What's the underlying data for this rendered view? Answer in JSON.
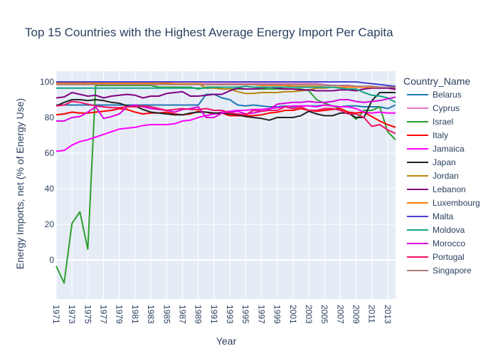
{
  "chart_data": {
    "type": "line",
    "title": "Top 15 Countries with the Highest Average Energy Import Per Capita",
    "xlabel": "Year",
    "ylabel": "Energy Imports, net (% of Energy Use)",
    "x": [
      1971,
      1972,
      1973,
      1974,
      1975,
      1976,
      1977,
      1978,
      1979,
      1980,
      1981,
      1982,
      1983,
      1984,
      1985,
      1986,
      1987,
      1988,
      1989,
      1990,
      1991,
      1992,
      1993,
      1994,
      1995,
      1996,
      1997,
      1998,
      1999,
      2000,
      2001,
      2002,
      2003,
      2004,
      2005,
      2006,
      2007,
      2008,
      2009,
      2010,
      2011,
      2012,
      2013,
      2014
    ],
    "xlim": [
      1971,
      2014
    ],
    "ylim": [
      -22,
      106
    ],
    "xticks": [
      1971,
      1973,
      1975,
      1977,
      1979,
      1981,
      1983,
      1985,
      1987,
      1989,
      1991,
      1993,
      1995,
      1997,
      1999,
      2001,
      2003,
      2005,
      2007,
      2009,
      2011,
      2013
    ],
    "yticks": [
      0,
      20,
      40,
      60,
      80,
      100
    ],
    "legend_title": "Country_Name",
    "legend_position": "right",
    "grid": true,
    "plot_bg": "#e5ecf6",
    "series": [
      {
        "name": "Belarus",
        "color": "#1f77b4",
        "values": [
          87,
          87,
          87,
          87,
          87,
          87,
          87,
          87,
          87,
          87,
          87,
          87,
          87,
          87,
          87,
          87,
          87,
          87,
          87,
          93,
          93,
          91,
          90,
          87,
          86.5,
          87,
          86.5,
          86,
          86,
          86.5,
          86,
          86.5,
          86.5,
          86.5,
          87,
          86.5,
          86,
          86.5,
          86.5,
          86,
          86,
          86,
          85,
          87
        ]
      },
      {
        "name": "Cyprus",
        "color": "#e377c2",
        "values": [
          99,
          99,
          99,
          99,
          99,
          99,
          99,
          99,
          99,
          99,
          99,
          99,
          99,
          99,
          99,
          99,
          99,
          99,
          99,
          99,
          99,
          99,
          99,
          99,
          99,
          99,
          99,
          99,
          99,
          99,
          99,
          99,
          99,
          99,
          98.5,
          98,
          98,
          97.5,
          97,
          97,
          97,
          96.5,
          96.5,
          95.5
        ]
      },
      {
        "name": "Israel",
        "color": "#2ca02c",
        "values": [
          -3.5,
          -13,
          20.5,
          27,
          6,
          98,
          98,
          98,
          98,
          98,
          98,
          98,
          98,
          97,
          97,
          97,
          97,
          97,
          96,
          97,
          97,
          96,
          96,
          96,
          96,
          96,
          96,
          96,
          96,
          96,
          96,
          96,
          95,
          90,
          88,
          86.5,
          85,
          83,
          79,
          84,
          84,
          86,
          72,
          67.5
        ]
      },
      {
        "name": "Italy",
        "color": "#ff0000",
        "values": [
          81.5,
          82,
          83,
          82.5,
          82.5,
          83,
          83.5,
          84,
          85,
          84.5,
          83,
          82,
          82.5,
          82.5,
          83,
          82,
          81.5,
          82,
          83.5,
          83,
          82,
          82.5,
          81,
          81,
          81,
          81,
          81.5,
          82.5,
          83,
          84,
          84,
          85,
          84,
          83.5,
          84,
          84.5,
          85,
          83,
          82.5,
          83,
          80.5,
          78,
          76,
          74.5
        ]
      },
      {
        "name": "Jamaica",
        "color": "#ff00ff",
        "values": [
          61,
          61.5,
          64.5,
          66.5,
          67.5,
          69,
          70.5,
          72,
          73.5,
          74,
          74.5,
          75.5,
          76,
          76,
          76,
          76.5,
          78,
          78.5,
          80,
          81,
          82,
          83,
          83.5,
          84,
          84,
          84.5,
          84.5,
          85,
          85.5,
          86,
          86.5,
          86.5,
          86.5,
          86,
          87,
          86.5,
          86,
          86,
          85,
          83,
          82.5,
          83,
          82.5,
          82.5
        ]
      },
      {
        "name": "Japan",
        "color": "#222222",
        "values": [
          86.5,
          88.5,
          90,
          90,
          89.5,
          90,
          89.5,
          88.5,
          88,
          86.5,
          86.5,
          84.5,
          83,
          82.5,
          82,
          81.5,
          81.5,
          82.5,
          83,
          83,
          82.5,
          82.5,
          82,
          81.5,
          80.5,
          80,
          79.5,
          78.5,
          80,
          80,
          80,
          81,
          83.5,
          82,
          81,
          81,
          82.5,
          82.5,
          80,
          80,
          89.5,
          94,
          94,
          94
        ]
      },
      {
        "name": "Jordan",
        "color": "#b8860b",
        "values": [
          99,
          99,
          99,
          99,
          99,
          99,
          99,
          99,
          99,
          99,
          99,
          99,
          99,
          99,
          99,
          99,
          99,
          99,
          99,
          96.5,
          96.5,
          96,
          96,
          94.5,
          93.5,
          93.5,
          94,
          94,
          94,
          94.5,
          94.5,
          95,
          95.5,
          96.5,
          96.5,
          97,
          97,
          97,
          97,
          97,
          97,
          97,
          97,
          96.5
        ]
      },
      {
        "name": "Lebanon",
        "color": "#800080",
        "values": [
          91,
          91.5,
          94,
          93,
          92,
          92.5,
          91,
          92,
          92.5,
          93,
          92.5,
          91,
          92,
          92,
          93.5,
          94,
          94.5,
          92,
          92,
          92.5,
          93,
          93,
          95,
          96.5,
          96,
          96,
          96.5,
          97,
          96.5,
          96,
          96,
          95.5,
          95.5,
          95,
          95,
          95,
          95.5,
          95.5,
          95,
          96,
          96.5,
          96.5,
          96.5,
          96
        ]
      },
      {
        "name": "Luxembourg",
        "color": "#ff7f0e",
        "values": [
          99.5,
          99.5,
          99.5,
          99.5,
          99.5,
          99.5,
          99.5,
          99.5,
          99.5,
          99.5,
          99.5,
          99.5,
          99.5,
          99.5,
          99.5,
          99,
          99,
          99,
          99,
          98.5,
          98.5,
          98.5,
          98.5,
          98.5,
          98.5,
          98.5,
          98,
          98,
          98,
          98,
          97.5,
          97.5,
          97.5,
          97.5,
          97,
          97,
          97,
          97,
          97,
          97,
          97,
          97,
          97,
          97
        ]
      },
      {
        "name": "Malta",
        "color": "#4b3fcf",
        "values": [
          100,
          100,
          100,
          100,
          100,
          100,
          100,
          100,
          100,
          100,
          100,
          100,
          100,
          100,
          100,
          100,
          100,
          100,
          100,
          100,
          100,
          100,
          100,
          100,
          100,
          100,
          100,
          100,
          100,
          100,
          100,
          100,
          100,
          100,
          100,
          100,
          100,
          100,
          100,
          99.5,
          99,
          98.5,
          98,
          97.5
        ]
      },
      {
        "name": "Moldova",
        "color": "#17a383",
        "values": [
          96.5,
          96.5,
          96.5,
          96.5,
          96.5,
          96.5,
          96.5,
          96.5,
          96.5,
          96.5,
          96.5,
          96.5,
          96.5,
          96.5,
          96.5,
          96.5,
          96.5,
          96.5,
          96.5,
          96.5,
          97,
          97,
          97,
          97,
          97.5,
          97,
          97,
          97,
          97,
          97,
          97,
          97,
          97,
          97,
          97,
          97,
          96.5,
          96,
          96,
          94,
          92.5,
          92,
          91,
          88.5
        ]
      },
      {
        "name": "Morocco",
        "color": "#dd00dd",
        "values": [
          78,
          78,
          80,
          80.5,
          83,
          86,
          79.5,
          80.5,
          82,
          86,
          87,
          86,
          85,
          84.5,
          84,
          83,
          84.5,
          85,
          86,
          80,
          80,
          82.5,
          83,
          83.5,
          82,
          82.5,
          83.5,
          84.5,
          87.5,
          88,
          88.5,
          88.5,
          89,
          88.5,
          88.5,
          89,
          90,
          90,
          89,
          88.5,
          89,
          89.5,
          90.5,
          91.5
        ]
      },
      {
        "name": "Portugal",
        "color": "#ee1166",
        "values": [
          86.5,
          87,
          89,
          88.5,
          87.5,
          86.5,
          86,
          85.5,
          85.5,
          86,
          86,
          86.5,
          86,
          85,
          84,
          84.5,
          85,
          84.5,
          84.5,
          85,
          84,
          84,
          82.5,
          82,
          81.5,
          84,
          83.5,
          84,
          84,
          86,
          85,
          86,
          84,
          84,
          85,
          85,
          84,
          82,
          82,
          80,
          75,
          76,
          73,
          71
        ]
      },
      {
        "name": "Singapore",
        "color": "#b07a7a",
        "values": [
          98.5,
          98.5,
          98.5,
          98.5,
          98.5,
          98.5,
          98.5,
          98.5,
          98.5,
          98.5,
          98.5,
          98.5,
          98.5,
          98.5,
          98.5,
          98.5,
          98.5,
          98.5,
          98.5,
          98.5,
          98.5,
          98.5,
          98.5,
          98.5,
          98.5,
          98.5,
          98.5,
          98.5,
          98.5,
          98.5,
          98.5,
          98.5,
          98.5,
          98.5,
          98,
          98,
          98,
          98,
          97.5,
          97.5,
          97.5,
          97,
          97,
          97
        ]
      }
    ]
  }
}
